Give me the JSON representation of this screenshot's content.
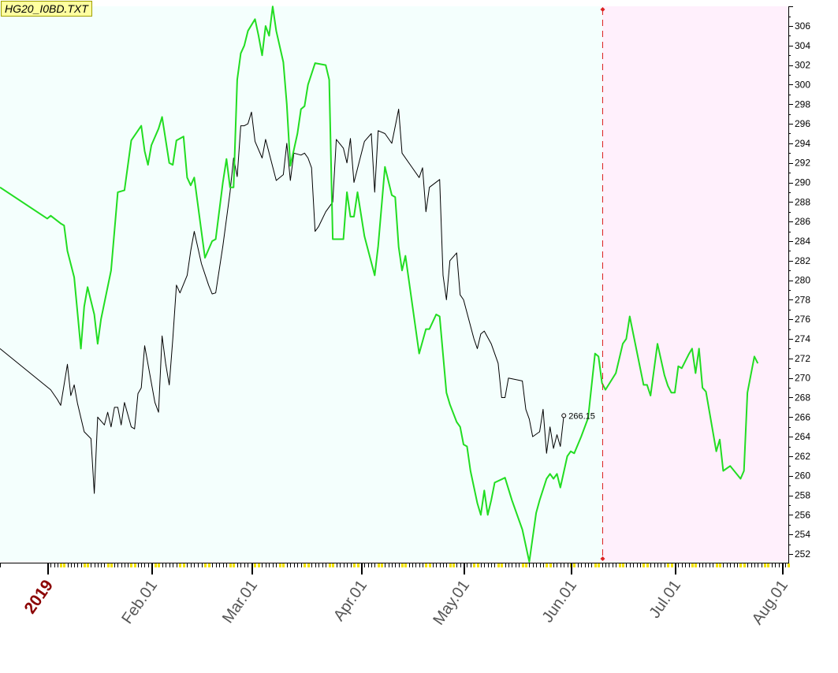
{
  "title": "HG20_I0BD.TXT",
  "chart_data": {
    "type": "line",
    "title": "HG20_I0BD.TXT",
    "ylim": [
      251,
      309
    ],
    "y_ticks": [
      252,
      254,
      256,
      258,
      260,
      262,
      264,
      266,
      268,
      270,
      272,
      274,
      276,
      278,
      280,
      282,
      284,
      286,
      288,
      290,
      292,
      294,
      296,
      298,
      300,
      302,
      304,
      306
    ],
    "x_labels": [
      {
        "label": "2019",
        "date": "2019-01-01",
        "highlight": true
      },
      {
        "label": "Feb.01",
        "date": "2019-02-01"
      },
      {
        "label": "Mar.01",
        "date": "2019-03-01"
      },
      {
        "label": "Apr.01",
        "date": "2019-04-01"
      },
      {
        "label": "May.01",
        "date": "2019-05-01"
      },
      {
        "label": "Jun.01",
        "date": "2019-06-01"
      },
      {
        "label": "Jul.01",
        "date": "2019-07-01"
      },
      {
        "label": "Aug.01",
        "date": "2019-08-01"
      }
    ],
    "marker_date": "2019-06-10",
    "last_value_label": "266.15",
    "colors": {
      "history_bg": "#f4fffd",
      "forecast_bg": "#fff0fc",
      "series_black": "#000000",
      "series_green": "#22dd22",
      "marker": "#dd2222",
      "year_label": "#8b0000",
      "tick_yellow": "#f0e000"
    },
    "series": [
      {
        "color": "#000000",
        "points": [
          [
            "2018-12-31",
            273
          ],
          [
            "2019-01-02",
            268.8
          ],
          [
            "2019-01-04",
            267.8
          ],
          [
            "2019-01-05",
            267.2
          ],
          [
            "2019-01-07",
            271.4
          ],
          [
            "2019-01-08",
            268.2
          ],
          [
            "2019-01-09",
            269.3
          ],
          [
            "2019-01-10",
            267.4
          ],
          [
            "2019-01-12",
            264.5
          ],
          [
            "2019-01-14",
            263.8
          ],
          [
            "2019-01-15",
            258.2
          ],
          [
            "2019-01-16",
            266
          ],
          [
            "2019-01-18",
            265.2
          ],
          [
            "2019-01-19",
            266.5
          ],
          [
            "2019-01-20",
            265
          ],
          [
            "2019-01-21",
            267
          ],
          [
            "2019-01-22",
            267
          ],
          [
            "2019-01-23",
            265.2
          ],
          [
            "2019-01-24",
            267.5
          ],
          [
            "2019-01-26",
            265
          ],
          [
            "2019-01-27",
            264.8
          ],
          [
            "2019-01-28",
            268.4
          ],
          [
            "2019-01-29",
            269
          ],
          [
            "2019-01-30",
            273.3
          ],
          [
            "2019-02-02",
            267.5
          ],
          [
            "2019-02-03",
            266.5
          ],
          [
            "2019-02-04",
            274.3
          ],
          [
            "2019-02-05",
            271.5
          ],
          [
            "2019-02-06",
            269.3
          ],
          [
            "2019-02-07",
            274
          ],
          [
            "2019-02-08",
            279.5
          ],
          [
            "2019-02-09",
            278.7
          ],
          [
            "2019-02-11",
            280.5
          ],
          [
            "2019-02-12",
            283
          ],
          [
            "2019-02-13",
            285
          ],
          [
            "2019-02-15",
            281.7
          ],
          [
            "2019-02-17",
            279.5
          ],
          [
            "2019-02-18",
            278.6
          ],
          [
            "2019-02-19",
            278.7
          ],
          [
            "2019-02-21",
            283.5
          ],
          [
            "2019-02-23",
            289
          ],
          [
            "2019-02-24",
            292.5
          ],
          [
            "2019-02-25",
            290.6
          ],
          [
            "2019-02-26",
            295.8
          ],
          [
            "2019-02-27",
            295.8
          ],
          [
            "2019-02-28",
            296
          ],
          [
            "2019-03-01",
            297.2
          ],
          [
            "2019-03-02",
            294.2
          ],
          [
            "2019-03-04",
            292.5
          ],
          [
            "2019-03-05",
            294.4
          ],
          [
            "2019-03-06",
            293
          ],
          [
            "2019-03-08",
            290.2
          ],
          [
            "2019-03-10",
            290.8
          ],
          [
            "2019-03-11",
            294
          ],
          [
            "2019-03-12",
            290.2
          ],
          [
            "2019-03-13",
            293
          ],
          [
            "2019-03-15",
            292.8
          ],
          [
            "2019-03-16",
            293
          ],
          [
            "2019-03-17",
            292.5
          ],
          [
            "2019-03-18",
            291.5
          ],
          [
            "2019-03-19",
            285
          ],
          [
            "2019-03-20",
            285.5
          ],
          [
            "2019-03-22",
            287
          ],
          [
            "2019-03-24",
            288
          ],
          [
            "2019-03-25",
            294.4
          ],
          [
            "2019-03-27",
            293.5
          ],
          [
            "2019-03-28",
            292
          ],
          [
            "2019-03-29",
            294.5
          ],
          [
            "2019-03-30",
            290
          ],
          [
            "2019-04-02",
            294.2
          ],
          [
            "2019-04-04",
            295
          ],
          [
            "2019-04-05",
            289
          ],
          [
            "2019-04-06",
            295.3
          ],
          [
            "2019-04-08",
            295
          ],
          [
            "2019-04-10",
            294
          ],
          [
            "2019-04-12",
            297.5
          ],
          [
            "2019-04-13",
            293
          ],
          [
            "2019-04-16",
            291.5
          ],
          [
            "2019-04-18",
            290.5
          ],
          [
            "2019-04-19",
            291.5
          ],
          [
            "2019-04-20",
            287
          ],
          [
            "2019-04-21",
            289.5
          ],
          [
            "2019-04-24",
            290.3
          ],
          [
            "2019-04-25",
            280.5
          ],
          [
            "2019-04-26",
            278
          ],
          [
            "2019-04-27",
            282
          ],
          [
            "2019-04-29",
            282.8
          ],
          [
            "2019-04-30",
            278.5
          ],
          [
            "2019-05-01",
            278
          ],
          [
            "2019-05-04",
            274
          ],
          [
            "2019-05-05",
            273
          ],
          [
            "2019-05-06",
            274.5
          ],
          [
            "2019-05-07",
            274.8
          ],
          [
            "2019-05-09",
            273.5
          ],
          [
            "2019-05-11",
            271.5
          ],
          [
            "2019-05-12",
            268
          ],
          [
            "2019-05-13",
            268
          ],
          [
            "2019-05-14",
            270
          ],
          [
            "2019-05-18",
            269.7
          ],
          [
            "2019-05-19",
            266.8
          ],
          [
            "2019-05-20",
            265.8
          ],
          [
            "2019-05-21",
            264
          ],
          [
            "2019-05-23",
            264.5
          ],
          [
            "2019-05-24",
            266.8
          ],
          [
            "2019-05-25",
            262.3
          ],
          [
            "2019-05-26",
            265
          ],
          [
            "2019-05-27",
            262.8
          ],
          [
            "2019-05-28",
            264.2
          ],
          [
            "2019-05-29",
            263
          ],
          [
            "2019-05-30",
            266.15
          ]
        ]
      },
      {
        "color": "#22dd22",
        "points": [
          [
            "2018-12-31",
            289.5
          ],
          [
            "2019-01-01",
            286.3
          ],
          [
            "2019-01-02",
            286.6
          ],
          [
            "2019-01-05",
            285.8
          ],
          [
            "2019-01-06",
            285.6
          ],
          [
            "2019-01-07",
            283
          ],
          [
            "2019-01-09",
            280.3
          ],
          [
            "2019-01-11",
            273
          ],
          [
            "2019-01-12",
            277.3
          ],
          [
            "2019-01-13",
            279.3
          ],
          [
            "2019-01-15",
            276.5
          ],
          [
            "2019-01-16",
            273.5
          ],
          [
            "2019-01-17",
            276
          ],
          [
            "2019-01-20",
            281
          ],
          [
            "2019-01-22",
            289
          ],
          [
            "2019-01-24",
            289.2
          ],
          [
            "2019-01-26",
            294.3
          ],
          [
            "2019-01-29",
            295.8
          ],
          [
            "2019-01-30",
            293.2
          ],
          [
            "2019-01-31",
            291.8
          ],
          [
            "2019-02-01",
            293.8
          ],
          [
            "2019-02-03",
            295.5
          ],
          [
            "2019-02-04",
            296.7
          ],
          [
            "2019-02-06",
            292
          ],
          [
            "2019-02-07",
            291.8
          ],
          [
            "2019-02-08",
            294.3
          ],
          [
            "2019-02-10",
            294.7
          ],
          [
            "2019-02-11",
            290.5
          ],
          [
            "2019-02-12",
            289.7
          ],
          [
            "2019-02-13",
            290.5
          ],
          [
            "2019-02-15",
            285
          ],
          [
            "2019-02-16",
            282.3
          ],
          [
            "2019-02-18",
            284
          ],
          [
            "2019-02-19",
            284.2
          ],
          [
            "2019-02-21",
            290
          ],
          [
            "2019-02-22",
            292.4
          ],
          [
            "2019-02-23",
            289.5
          ],
          [
            "2019-02-24",
            289.5
          ],
          [
            "2019-02-25",
            300.5
          ],
          [
            "2019-02-26",
            303.2
          ],
          [
            "2019-02-27",
            304
          ],
          [
            "2019-02-28",
            305.5
          ],
          [
            "2019-03-02",
            306.7
          ],
          [
            "2019-03-03",
            305
          ],
          [
            "2019-03-04",
            303
          ],
          [
            "2019-03-05",
            306
          ],
          [
            "2019-03-06",
            305
          ],
          [
            "2019-03-07",
            308
          ],
          [
            "2019-03-08",
            305.5
          ],
          [
            "2019-03-10",
            302.3
          ],
          [
            "2019-03-11",
            298
          ],
          [
            "2019-03-12",
            291.7
          ],
          [
            "2019-03-14",
            295
          ],
          [
            "2019-03-15",
            297.5
          ],
          [
            "2019-03-16",
            297.8
          ],
          [
            "2019-03-17",
            300
          ],
          [
            "2019-03-19",
            302.2
          ],
          [
            "2019-03-22",
            302
          ],
          [
            "2019-03-23",
            300.5
          ],
          [
            "2019-03-24",
            284.2
          ],
          [
            "2019-03-27",
            284.2
          ],
          [
            "2019-03-28",
            289
          ],
          [
            "2019-03-29",
            286.5
          ],
          [
            "2019-03-30",
            286.5
          ],
          [
            "2019-03-31",
            289
          ],
          [
            "2019-04-02",
            284.5
          ],
          [
            "2019-04-05",
            280.5
          ],
          [
            "2019-04-06",
            283.5
          ],
          [
            "2019-04-08",
            291.6
          ],
          [
            "2019-04-10",
            288.7
          ],
          [
            "2019-04-11",
            288.5
          ],
          [
            "2019-04-12",
            283.4
          ],
          [
            "2019-04-13",
            281
          ],
          [
            "2019-04-14",
            282.5
          ],
          [
            "2019-04-16",
            277.5
          ],
          [
            "2019-04-18",
            272.5
          ],
          [
            "2019-04-20",
            275
          ],
          [
            "2019-04-21",
            275
          ],
          [
            "2019-04-23",
            276.5
          ],
          [
            "2019-04-24",
            276.3
          ],
          [
            "2019-04-26",
            268.5
          ],
          [
            "2019-04-27",
            267.3
          ],
          [
            "2019-04-29",
            265.5
          ],
          [
            "2019-04-30",
            265
          ],
          [
            "2019-05-01",
            263.2
          ],
          [
            "2019-05-02",
            263
          ],
          [
            "2019-05-03",
            260.5
          ],
          [
            "2019-05-05",
            257.2
          ],
          [
            "2019-05-06",
            256
          ],
          [
            "2019-05-07",
            258.5
          ],
          [
            "2019-05-08",
            256
          ],
          [
            "2019-05-09",
            257.5
          ],
          [
            "2019-05-10",
            259.3
          ],
          [
            "2019-05-13",
            259.8
          ],
          [
            "2019-05-15",
            257.5
          ],
          [
            "2019-05-18",
            254.5
          ],
          [
            "2019-05-20",
            251.2
          ],
          [
            "2019-05-22",
            256.2
          ],
          [
            "2019-05-23",
            257.5
          ],
          [
            "2019-05-25",
            259.7
          ],
          [
            "2019-05-26",
            260.2
          ],
          [
            "2019-05-27",
            259.7
          ],
          [
            "2019-05-28",
            260.2
          ],
          [
            "2019-05-29",
            258.8
          ],
          [
            "2019-05-31",
            262
          ],
          [
            "2019-06-01",
            262.5
          ],
          [
            "2019-06-02",
            262.3
          ],
          [
            "2019-06-04",
            264
          ],
          [
            "2019-06-06",
            265.9
          ],
          [
            "2019-06-08",
            272.5
          ],
          [
            "2019-06-09",
            272.2
          ],
          [
            "2019-06-10",
            269.5
          ],
          [
            "2019-06-11",
            268.8
          ],
          [
            "2019-06-14",
            270.5
          ],
          [
            "2019-06-16",
            273.5
          ],
          [
            "2019-06-17",
            274
          ],
          [
            "2019-06-18",
            276.3
          ],
          [
            "2019-06-22",
            269.3
          ],
          [
            "2019-06-23",
            269.3
          ],
          [
            "2019-06-24",
            268.2
          ],
          [
            "2019-06-26",
            273.5
          ],
          [
            "2019-06-28",
            270.3
          ],
          [
            "2019-06-29",
            269.2
          ],
          [
            "2019-06-30",
            268.5
          ],
          [
            "2019-07-01",
            268.5
          ],
          [
            "2019-07-02",
            271.2
          ],
          [
            "2019-07-03",
            271
          ],
          [
            "2019-07-05",
            272.4
          ],
          [
            "2019-07-06",
            273
          ],
          [
            "2019-07-07",
            270.5
          ],
          [
            "2019-07-08",
            273
          ],
          [
            "2019-07-09",
            269
          ],
          [
            "2019-07-10",
            268.6
          ],
          [
            "2019-07-13",
            262.5
          ],
          [
            "2019-07-14",
            263.7
          ],
          [
            "2019-07-15",
            260.5
          ],
          [
            "2019-07-17",
            261
          ],
          [
            "2019-07-20",
            259.7
          ],
          [
            "2019-07-21",
            260.5
          ],
          [
            "2019-07-22",
            268.5
          ],
          [
            "2019-07-24",
            272.2
          ],
          [
            "2019-07-25",
            271.5
          ]
        ]
      }
    ]
  }
}
